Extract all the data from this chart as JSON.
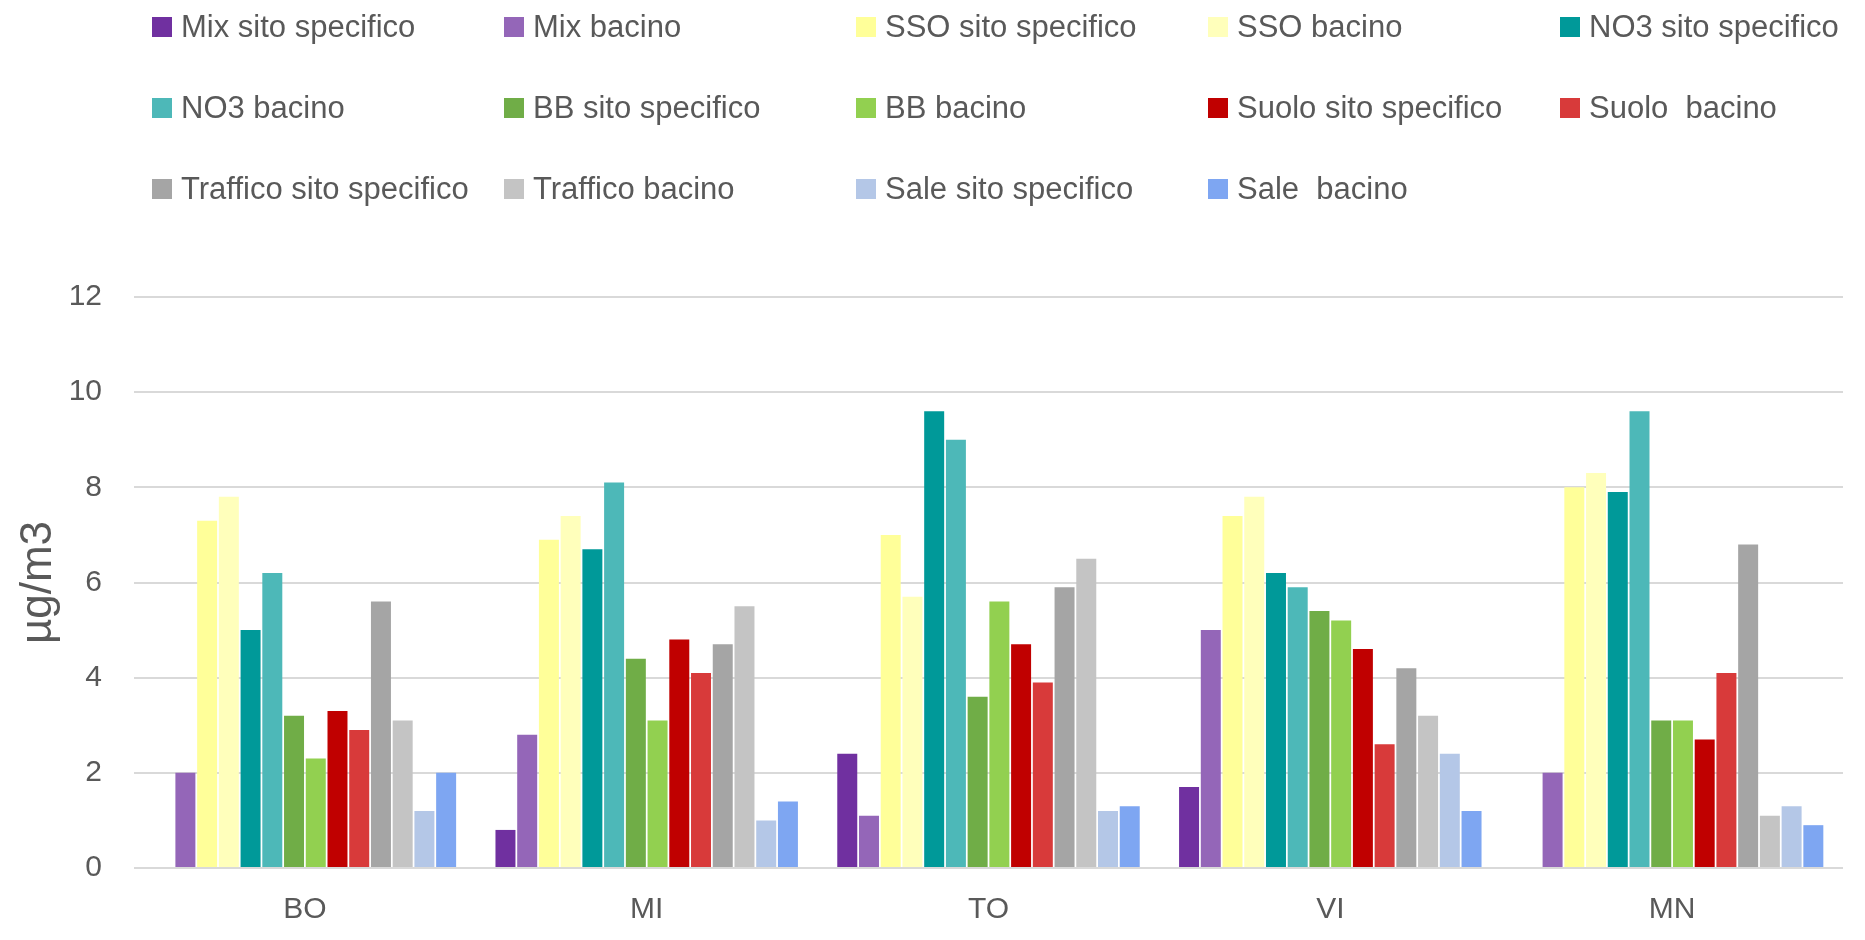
{
  "chart_data": {
    "type": "bar",
    "ylabel": "µg/m3",
    "categories": [
      "BO",
      "MI",
      "TO",
      "VI",
      "MN"
    ],
    "series": [
      {
        "name": "Mix sito specifico",
        "color": "#7030a0",
        "values": [
          null,
          0.8,
          2.4,
          1.7,
          null
        ]
      },
      {
        "name": "Mix bacino",
        "color": "#9466b8",
        "values": [
          2.0,
          2.8,
          1.1,
          5.0,
          2.0
        ]
      },
      {
        "name": "SSO sito specifico",
        "color": "#ffff99",
        "values": [
          7.3,
          6.9,
          7.0,
          7.4,
          8.0
        ]
      },
      {
        "name": "SSO bacino",
        "color": "#ffffbb",
        "values": [
          7.8,
          7.4,
          5.7,
          7.8,
          8.3
        ]
      },
      {
        "name": "NO3 sito specifico",
        "color": "#009999",
        "values": [
          5.0,
          6.7,
          9.6,
          6.2,
          7.9
        ]
      },
      {
        "name": "NO3 bacino",
        "color": "#4db8b8",
        "values": [
          6.2,
          8.1,
          9.0,
          5.9,
          9.6
        ]
      },
      {
        "name": "BB sito specifico",
        "color": "#70ad47",
        "values": [
          3.2,
          4.4,
          3.6,
          5.4,
          3.1
        ]
      },
      {
        "name": "BB bacino",
        "color": "#92d050",
        "values": [
          2.3,
          3.1,
          5.6,
          5.2,
          3.1
        ]
      },
      {
        "name": "Suolo sito specifico",
        "color": "#c00000",
        "values": [
          3.3,
          4.8,
          4.7,
          4.6,
          2.7
        ]
      },
      {
        "name": "Suolo  bacino",
        "color": "#d83a3a",
        "values": [
          2.9,
          4.1,
          3.9,
          2.6,
          4.1
        ]
      },
      {
        "name": "Traffico sito specifico",
        "color": "#a5a5a5",
        "values": [
          5.6,
          4.7,
          5.9,
          4.2,
          6.8
        ]
      },
      {
        "name": "Traffico bacino",
        "color": "#c4c4c4",
        "values": [
          3.1,
          5.5,
          6.5,
          3.2,
          1.1
        ]
      },
      {
        "name": "Sale sito specifico",
        "color": "#b4c7e7",
        "values": [
          1.2,
          1.0,
          1.2,
          2.4,
          1.3
        ]
      },
      {
        "name": "Sale  bacino",
        "color": "#7ea6f2",
        "values": [
          2.0,
          1.4,
          1.3,
          1.2,
          0.9
        ]
      }
    ],
    "ylim": [
      0,
      12
    ],
    "yticks": [
      0,
      2,
      4,
      6,
      8,
      10,
      12
    ],
    "grid": "y",
    "legend": "top"
  }
}
